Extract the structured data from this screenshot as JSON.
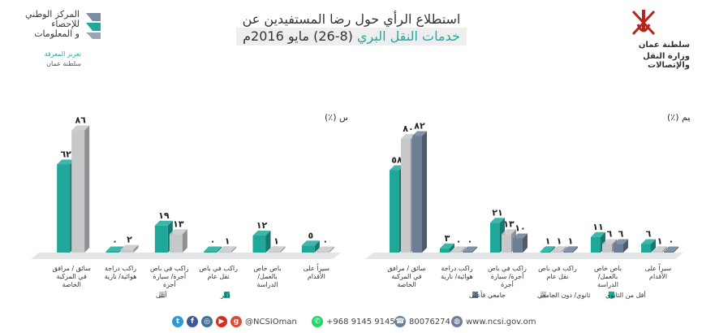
{
  "header": {
    "ncsi_lines": [
      "المركز الوطني",
      "للإحصاء",
      "و المعلومات"
    ],
    "ncsi_tagline": "تعزيز المعرفة",
    "ncsi_country": "سلطنة عمان",
    "title_line1": "استطلاع الرأي حول رضا المستفيدين عن",
    "title_line2_accent": "خدمات النقل البري",
    "title_line2_rest": "(8-26) مايو 2016م",
    "ministry_line1": "سلطنة عمان",
    "ministry_line2": "وزارة النقل والإتصالات"
  },
  "colors": {
    "teal": "#1fa89a",
    "light_gray": "#c6c8c9",
    "slate": "#6d7f96",
    "text": "#333333"
  },
  "chart_data": [
    {
      "type": "bar",
      "title": "وسيلة الانتقال إلى الوجهة المعتادة حسب الجنس (٪)",
      "categories": [
        "سائق / مرافق في المركبة الخاصة",
        "راكب دراجة هوائية/ نارية",
        "راكب في باص أجرة/ سيارة أجرة",
        "راكب في باص نقل عام",
        "باص خاص بالعمل/ الدراسة",
        "سيراً على الأقدام"
      ],
      "series": [
        {
          "name": "ذكر",
          "color": "#1fa89a",
          "values": [
            62,
            0,
            19,
            0,
            12,
            5
          ],
          "labels": [
            "٦٢",
            "٠",
            "١٩",
            "٠",
            "١٢",
            "٥"
          ]
        },
        {
          "name": "أنثى",
          "color": "#c6c8c9",
          "values": [
            86,
            2,
            13,
            1,
            1,
            0
          ],
          "labels": [
            "٨٦",
            "٢",
            "١٣",
            "١",
            "١",
            "٠"
          ]
        }
      ],
      "ylim": [
        0,
        100
      ],
      "grid": false,
      "legend": "bottom"
    },
    {
      "type": "bar",
      "title": "وسيلة الانتقال إلى الوجهة المعتادة حسب التعليم (٪)",
      "categories": [
        "سائق / مرافق في المركبة الخاصة",
        "راكب دراجة هوائية/ نارية",
        "راكب في باص أجرة/ سيارة أجرة",
        "راكب في باص نقل عام",
        "باص خاص بالعمل/ الدراسة",
        "سيراً على الأقدام"
      ],
      "series": [
        {
          "name": "أقل من الثانوي",
          "color": "#1fa89a",
          "values": [
            58,
            3,
            21,
            1,
            11,
            6
          ],
          "labels": [
            "٥٨",
            "٣",
            "٢١",
            "١",
            "١١",
            "٦"
          ]
        },
        {
          "name": "ثانوي/ دون الجامعي",
          "color": "#c6c8c9",
          "values": [
            80,
            0,
            13,
            1,
            6,
            1
          ],
          "labels": [
            "٨٠",
            "٠",
            "١٣",
            "١",
            "٦",
            "١"
          ]
        },
        {
          "name": "جامعي فأعلى",
          "color": "#6d7f96",
          "values": [
            82,
            0,
            10,
            1,
            6,
            0
          ],
          "labels": [
            "٨٢",
            "٠",
            "١٠",
            "١",
            "٦",
            "٠"
          ]
        }
      ],
      "ylim": [
        0,
        100
      ],
      "grid": false,
      "legend": "bottom"
    }
  ],
  "footer": {
    "handle": "@NCSIOman",
    "phone": "+968 9145 9145",
    "fax": "80076274",
    "website": "www.ncsi.gov.om",
    "icons": [
      "twitter-icon",
      "facebook-icon",
      "instagram-icon",
      "youtube-icon",
      "googleplus-icon",
      "whatsapp-icon",
      "phone-icon",
      "globe-icon"
    ]
  }
}
